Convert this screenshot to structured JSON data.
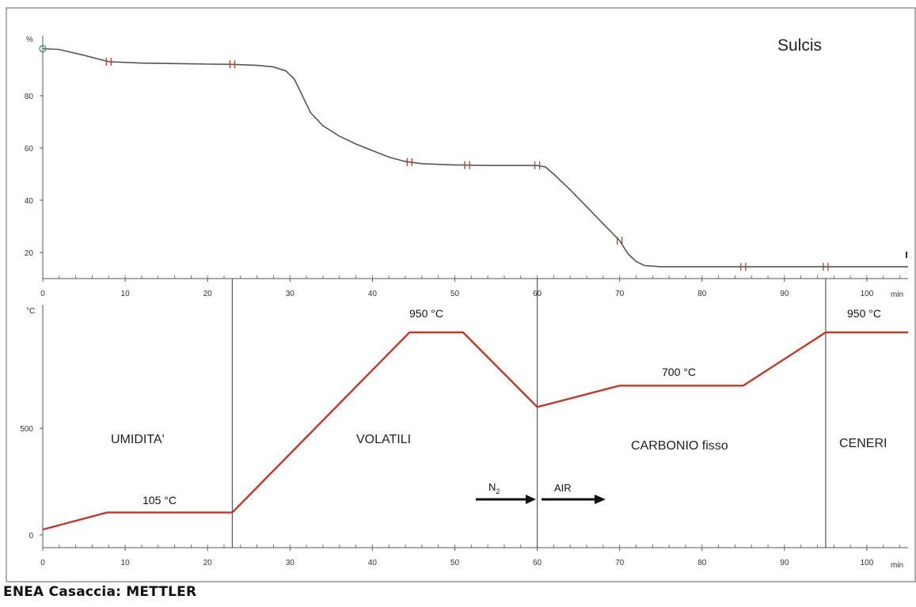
{
  "caption": "ENEA Casaccia: METTLER",
  "chart_data": [
    {
      "type": "line",
      "title": "Sulcis",
      "ylabel": "%",
      "xlabel": "min",
      "xlim": [
        0,
        105
      ],
      "ylim": [
        10,
        103
      ],
      "x_ticks": [
        0,
        10,
        20,
        30,
        40,
        50,
        60,
        70,
        80,
        90,
        100
      ],
      "y_ticks": [
        20,
        40,
        60,
        80
      ],
      "grid": false,
      "series": [
        {
          "color": "#555555",
          "x": [
            0,
            2,
            5,
            8,
            12,
            16,
            20,
            23,
            26,
            28,
            29.5,
            30.5,
            31.5,
            32.5,
            34,
            36,
            38,
            40,
            42,
            44,
            46,
            48,
            50,
            52,
            54,
            56,
            58,
            60,
            61,
            62,
            64,
            66,
            68,
            70,
            71,
            72,
            73,
            75,
            80,
            85,
            90,
            95,
            100,
            105
          ],
          "y": [
            98,
            97.7,
            95.5,
            93,
            92.5,
            92.3,
            92.1,
            92,
            91.6,
            91,
            89.5,
            86.5,
            80,
            73.5,
            68.5,
            64.5,
            61.5,
            59,
            56.5,
            54.8,
            54,
            53.7,
            53.5,
            53.4,
            53.3,
            53.3,
            53.3,
            53.3,
            52.7,
            50,
            44,
            37.5,
            31,
            24.5,
            19.5,
            16.5,
            15,
            14.5,
            14.5,
            14.5,
            14.5,
            14.5,
            14.5,
            14.5
          ]
        }
      ],
      "markers_x": [
        8,
        23,
        44.5,
        51.5,
        60,
        70,
        85,
        95
      ]
    },
    {
      "type": "line",
      "ylabel": "°C",
      "xlabel": "min",
      "xlim": [
        0,
        105
      ],
      "ylim": [
        -60,
        1080
      ],
      "x_ticks": [
        0,
        10,
        20,
        30,
        40,
        50,
        60,
        70,
        80,
        90,
        100
      ],
      "y_ticks": [
        0,
        500
      ],
      "grid": false,
      "series": [
        {
          "color": "#c0392b",
          "x": [
            0,
            7.8,
            23,
            44.5,
            51,
            60,
            70,
            85,
            95,
            105
          ],
          "y": [
            25,
            105,
            105,
            950,
            950,
            600,
            700,
            700,
            950,
            950
          ]
        }
      ],
      "phase_dividers_x": [
        23,
        60,
        95
      ],
      "phases": [
        "UMIDITA'",
        "VOLATILI",
        "CARBONIO fisso",
        "CENERI"
      ],
      "annotations": [
        "105 °C",
        "950 °C",
        "700 °C",
        "950 °C"
      ],
      "gas_labels": {
        "n2": "N",
        "n2_subscript": "2",
        "air": "AIR"
      }
    }
  ]
}
